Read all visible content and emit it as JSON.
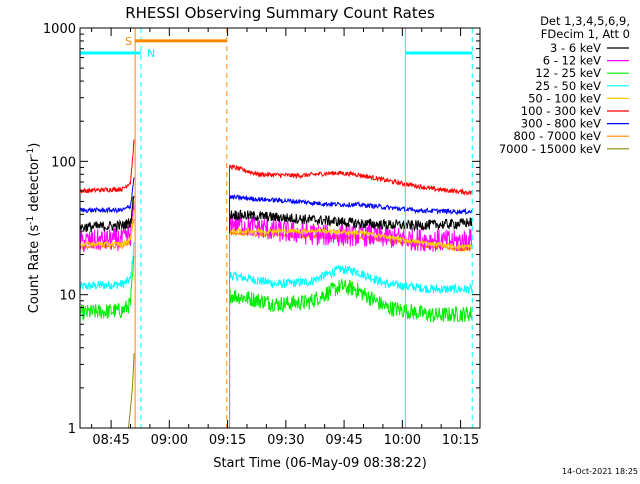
{
  "chart_data": {
    "type": "line",
    "title": "RHESSI Observing Summary Count Rates",
    "xlabel": "Start Time (06-May-09 08:38:22)",
    "ylabel_main": "Count Rate (s",
    "ylabel_sup1": "-1",
    "ylabel_mid": " detector",
    "ylabel_sup2": "-1",
    "ylabel_end": ")",
    "y_scale": "log",
    "ylim": [
      1,
      1000
    ],
    "xlim_min": [
      -1,
      102
    ],
    "x_ticks": [
      {
        "min": 7,
        "label": "08:45"
      },
      {
        "min": 22,
        "label": "09:00"
      },
      {
        "min": 37,
        "label": "09:15"
      },
      {
        "min": 52,
        "label": "09:30"
      },
      {
        "min": 67,
        "label": "09:45"
      },
      {
        "min": 82,
        "label": "10:00"
      },
      {
        "min": 97,
        "label": "10:15"
      }
    ],
    "y_ticks": [
      {
        "value": 1,
        "label": "1"
      },
      {
        "value": 10,
        "label": "10"
      },
      {
        "value": 100,
        "label": "100"
      },
      {
        "value": 1000,
        "label": "1000"
      }
    ],
    "legend": {
      "placement": "right",
      "header": [
        "Det 1,3,4,5,6,9,",
        "FDecim 1, Att 0"
      ]
    },
    "series": [
      {
        "name": "3 - 6 keV",
        "color": "#000000",
        "pre": [
          [
            -1,
            32
          ],
          [
            10,
            33
          ],
          [
            12,
            35
          ],
          [
            13,
            60
          ]
        ],
        "post": [
          [
            37.5,
            40
          ],
          [
            50,
            38
          ],
          [
            62,
            36
          ],
          [
            72,
            34
          ],
          [
            85,
            33
          ],
          [
            96,
            34
          ],
          [
            100,
            35
          ]
        ],
        "noise": 0.09
      },
      {
        "name": "6 - 12 keV",
        "color": "#ff00ff",
        "pre": [
          [
            -1,
            25
          ],
          [
            10,
            26
          ],
          [
            12,
            28
          ],
          [
            13,
            50
          ]
        ],
        "post": [
          [
            37.5,
            35
          ],
          [
            50,
            30
          ],
          [
            62,
            28
          ],
          [
            72,
            28
          ],
          [
            85,
            26
          ],
          [
            96,
            25
          ],
          [
            100,
            26
          ]
        ],
        "noise": 0.2
      },
      {
        "name": "12 - 25 keV",
        "color": "#00ee00",
        "pre": [
          [
            -1,
            7.3
          ],
          [
            10,
            7.6
          ],
          [
            12,
            8.5
          ],
          [
            13,
            20
          ]
        ],
        "post": [
          [
            37.5,
            10
          ],
          [
            50,
            8.5
          ],
          [
            58,
            8.8
          ],
          [
            66,
            11.5
          ],
          [
            70,
            11
          ],
          [
            78,
            8
          ],
          [
            90,
            7
          ],
          [
            100,
            7.2
          ]
        ],
        "noise": 0.14
      },
      {
        "name": "25 - 50 keV",
        "color": "#00ffff",
        "pre": [
          [
            -1,
            11.5
          ],
          [
            10,
            12
          ],
          [
            12,
            13
          ],
          [
            13,
            25
          ]
        ],
        "post": [
          [
            37.5,
            14
          ],
          [
            50,
            12
          ],
          [
            58,
            12.5
          ],
          [
            66,
            15.5
          ],
          [
            70,
            15
          ],
          [
            78,
            12
          ],
          [
            90,
            11
          ],
          [
            100,
            11
          ]
        ],
        "noise": 0.08
      },
      {
        "name": "50 - 100 keV",
        "color": "#ffcc00",
        "pre": [
          [
            -1,
            24
          ],
          [
            10,
            24
          ],
          [
            12,
            26
          ],
          [
            13,
            45
          ]
        ],
        "post": [
          [
            37.5,
            30
          ],
          [
            50,
            30
          ],
          [
            62,
            30
          ],
          [
            72,
            29
          ],
          [
            85,
            25
          ],
          [
            96,
            23
          ],
          [
            100,
            23
          ]
        ],
        "noise": 0.04
      },
      {
        "name": "100 - 300 keV",
        "color": "#ff0000",
        "pre": [
          [
            -1,
            60
          ],
          [
            10,
            62
          ],
          [
            12,
            70
          ],
          [
            13,
            150
          ]
        ],
        "post": [
          [
            37.5,
            92
          ],
          [
            45,
            80
          ],
          [
            55,
            78
          ],
          [
            65,
            82
          ],
          [
            70,
            80
          ],
          [
            80,
            70
          ],
          [
            90,
            62
          ],
          [
            100,
            58
          ]
        ],
        "noise": 0.04
      },
      {
        "name": "300 - 800 keV",
        "color": "#0000ff",
        "pre": [
          [
            -1,
            43
          ],
          [
            10,
            43
          ],
          [
            12,
            46
          ],
          [
            13,
            80
          ]
        ],
        "post": [
          [
            37.5,
            54
          ],
          [
            45,
            52
          ],
          [
            55,
            50
          ],
          [
            62,
            48
          ],
          [
            72,
            47
          ],
          [
            85,
            43
          ],
          [
            96,
            42
          ],
          [
            100,
            42
          ]
        ],
        "noise": 0.04
      },
      {
        "name": "800 - 7000 keV",
        "color": "#ff8800",
        "pre": [
          [
            -1,
            23
          ],
          [
            10,
            23
          ],
          [
            12,
            25
          ],
          [
            13,
            40
          ]
        ],
        "post": [
          [
            37.5,
            29
          ],
          [
            50,
            28
          ],
          [
            62,
            27
          ],
          [
            72,
            27
          ],
          [
            85,
            24
          ],
          [
            96,
            22
          ],
          [
            100,
            22
          ]
        ],
        "noise": 0.04
      },
      {
        "name": "7000 - 15000 keV",
        "color": "#888800",
        "pre": [
          [
            11.5,
            1
          ],
          [
            12.5,
            2
          ],
          [
            13,
            4
          ]
        ],
        "post": [],
        "noise": 0
      }
    ],
    "intervals": {
      "saa": {
        "label": "S",
        "color": "#ff8800",
        "start": 13.2,
        "end": 36.8,
        "level": 800
      },
      "night": {
        "label": "N",
        "color": "#00ffff",
        "value": 650,
        "segments": [
          [
            -1,
            14.7
          ],
          [
            82.8,
            100
          ]
        ]
      },
      "cyan_bounds": [
        -1,
        14.7,
        82.8,
        100
      ],
      "orange_bounds": [
        13.2,
        36.8
      ]
    }
  },
  "footer_timestamp": "14-Oct-2021 18:25"
}
